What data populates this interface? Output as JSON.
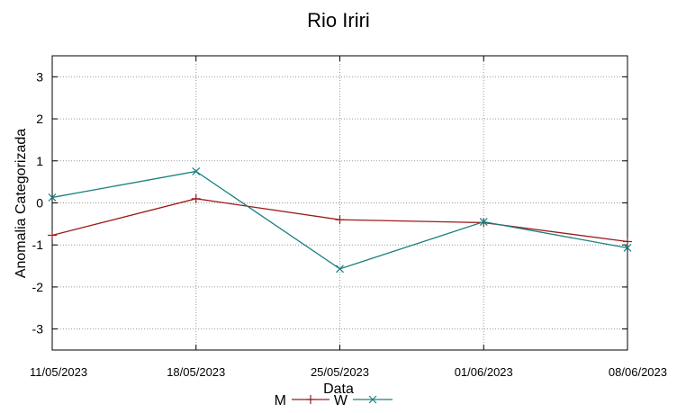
{
  "chart_data": {
    "type": "line",
    "title": "Rio Iriri",
    "xlabel": "Data",
    "ylabel": "Anomalia Categorizada",
    "categories": [
      "11/05/2023",
      "18/05/2023",
      "25/05/2023",
      "01/06/2023",
      "08/06/2023"
    ],
    "ylim": [
      -3.5,
      3.5
    ],
    "yticks": [
      3,
      2,
      1,
      0,
      -1,
      -2,
      -3
    ],
    "grid": true,
    "legend_position": "bottom-center",
    "series": [
      {
        "name": "M",
        "values": [
          -0.77,
          0.1,
          -0.4,
          -0.47,
          -0.92
        ],
        "color": "#9b1b1b",
        "marker": "plus"
      },
      {
        "name": "W",
        "values": [
          0.13,
          0.75,
          -1.57,
          -0.45,
          -1.07
        ],
        "color": "#1b7f7f",
        "marker": "cross"
      }
    ]
  }
}
